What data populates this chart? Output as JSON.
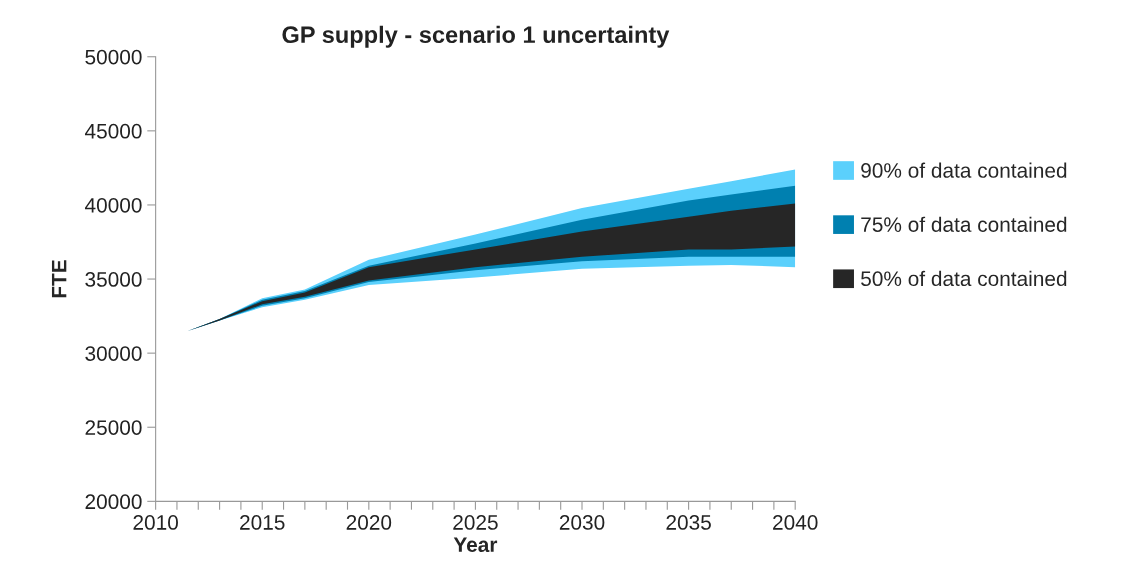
{
  "chart_data": {
    "type": "area",
    "title": "GP supply - scenario 1 uncertainty",
    "xlabel": "Year",
    "ylabel": "FTE",
    "x": [
      2011.5,
      2013,
      2015,
      2017,
      2020,
      2025,
      2030,
      2035,
      2037,
      2040
    ],
    "series": [
      {
        "name": "90% of data contained",
        "color": "#5bd0fc",
        "values": [
          null,
          null,
          null,
          null,
          null,
          null,
          null,
          null,
          null,
          null
        ],
        "lower": [
          31500,
          32200,
          33100,
          33600,
          34600,
          35100,
          35700,
          35900,
          35950,
          35800
        ],
        "upper": [
          31500,
          32300,
          33700,
          34300,
          36300,
          38000,
          39800,
          41100,
          41600,
          42400
        ]
      },
      {
        "name": "75% of data contained",
        "color": "#0080b0",
        "values": [
          null,
          null,
          null,
          null,
          null,
          null,
          null,
          null,
          null,
          null
        ],
        "lower": [
          31500,
          32200,
          33200,
          33700,
          34800,
          35600,
          36200,
          36500,
          36500,
          36500
        ],
        "upper": [
          31500,
          32300,
          33600,
          34200,
          35900,
          37400,
          39000,
          40300,
          40700,
          41300
        ]
      },
      {
        "name": "50% of data contained",
        "color": "#262626",
        "values": [
          null,
          null,
          null,
          null,
          null,
          null,
          null,
          null,
          null,
          null
        ],
        "lower": [
          31500,
          32200,
          33300,
          33800,
          34900,
          35800,
          36500,
          37000,
          37000,
          37200
        ],
        "upper": [
          31500,
          32300,
          33500,
          34100,
          35800,
          37000,
          38200,
          39200,
          39600,
          40100
        ]
      }
    ],
    "xlim": [
      2010,
      2040
    ],
    "ylim": [
      20000,
      50000
    ],
    "xticks": [
      2010,
      {
        "value": 2011,
        "label": null
      },
      {
        "value": 2012,
        "label": null
      },
      {
        "value": 2013,
        "label": null
      },
      {
        "value": 2014,
        "label": null
      },
      2015,
      {
        "value": 2016,
        "label": null
      },
      {
        "value": 2017,
        "label": null
      },
      {
        "value": 2018,
        "label": null
      },
      {
        "value": 2019,
        "label": null
      },
      2020,
      {
        "value": 2021,
        "label": null
      },
      {
        "value": 2022,
        "label": null
      },
      {
        "value": 2023,
        "label": null
      },
      {
        "value": 2024,
        "label": null
      },
      2025,
      {
        "value": 2026,
        "label": null
      },
      {
        "value": 2027,
        "label": null
      },
      {
        "value": 2028,
        "label": null
      },
      {
        "value": 2029,
        "label": null
      },
      2030,
      {
        "value": 2031,
        "label": null
      },
      {
        "value": 2032,
        "label": null
      },
      {
        "value": 2033,
        "label": null
      },
      {
        "value": 2034,
        "label": null
      },
      2035,
      {
        "value": 2036,
        "label": null
      },
      {
        "value": 2037,
        "label": null
      },
      {
        "value": 2038,
        "label": null
      },
      {
        "value": 2039,
        "label": null
      },
      2040
    ],
    "yticks": [
      20000,
      25000,
      30000,
      35000,
      40000,
      45000,
      50000
    ],
    "grid": false,
    "legend": "right"
  }
}
